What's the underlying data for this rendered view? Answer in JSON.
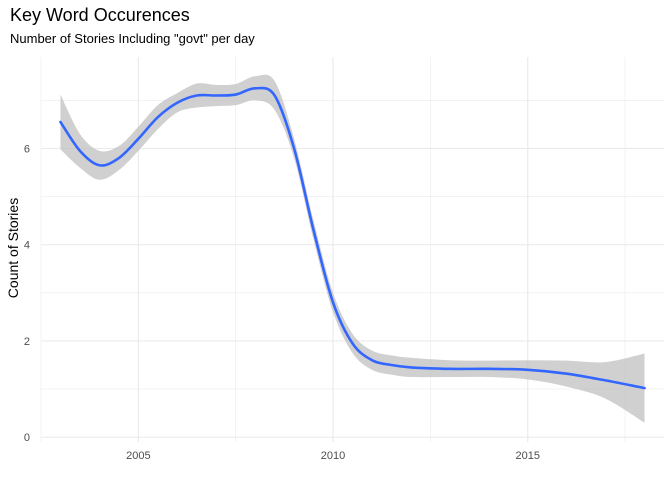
{
  "chart_data": {
    "type": "line",
    "title": "Key Word Occurences",
    "subtitle": "Number of Stories Including \"govt\" per day",
    "xlabel": "",
    "ylabel": "Count of Stories",
    "xlim": [
      2002.5,
      2018.5
    ],
    "ylim": [
      -0.1,
      7.9
    ],
    "x_ticks": [
      2005,
      2010,
      2015
    ],
    "y_ticks": [
      0,
      2,
      4,
      6
    ],
    "grid": true,
    "legend": "none",
    "colors": {
      "line": "#3366FF",
      "band": "#BEBEBE",
      "grid": "#EBEBEB"
    },
    "series": [
      {
        "x": [
          2003.0,
          2003.5,
          2004.0,
          2004.5,
          2005.0,
          2005.5,
          2006.0,
          2006.5,
          2007.0,
          2007.5,
          2008.0,
          2008.5,
          2009.0,
          2009.5,
          2010.0,
          2010.5,
          2011.0,
          2011.5,
          2012.0,
          2013.0,
          2014.0,
          2015.0,
          2016.0,
          2017.0,
          2018.0
        ],
        "y": [
          6.55,
          5.95,
          5.65,
          5.8,
          6.2,
          6.65,
          6.95,
          7.1,
          7.1,
          7.12,
          7.25,
          7.1,
          6.0,
          4.3,
          2.8,
          1.95,
          1.6,
          1.5,
          1.45,
          1.42,
          1.42,
          1.4,
          1.32,
          1.18,
          1.02
        ],
        "lower": [
          5.98,
          5.6,
          5.35,
          5.55,
          5.95,
          6.4,
          6.75,
          6.85,
          6.88,
          6.9,
          7.0,
          6.8,
          5.8,
          4.1,
          2.6,
          1.75,
          1.4,
          1.3,
          1.25,
          1.25,
          1.25,
          1.2,
          1.05,
          0.8,
          0.3
        ],
        "upper": [
          7.12,
          6.3,
          5.95,
          6.05,
          6.45,
          6.9,
          7.15,
          7.35,
          7.32,
          7.34,
          7.5,
          7.4,
          6.2,
          4.5,
          3.0,
          2.15,
          1.8,
          1.7,
          1.65,
          1.6,
          1.59,
          1.6,
          1.59,
          1.56,
          1.74
        ]
      }
    ]
  }
}
